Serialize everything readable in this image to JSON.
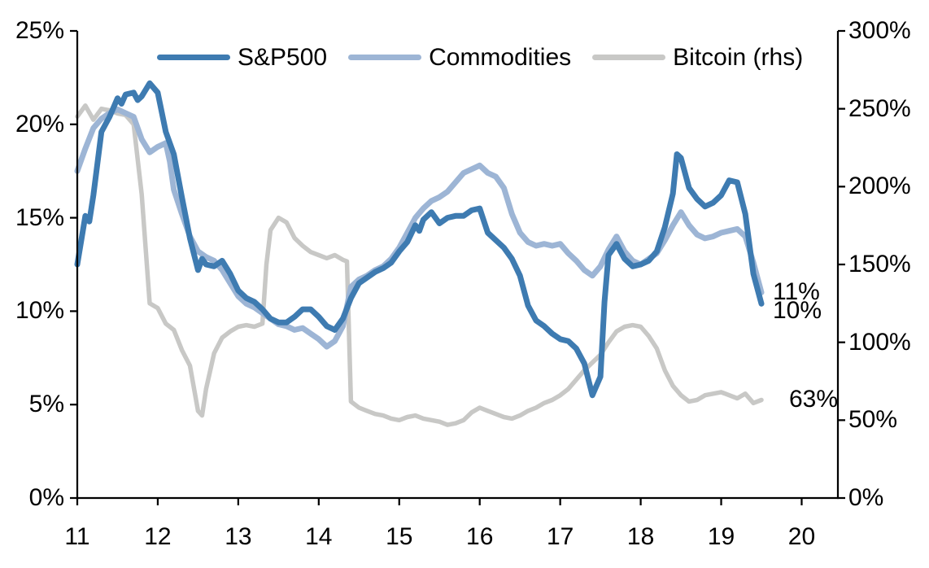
{
  "chart_data": {
    "type": "line",
    "legend_position": "top",
    "x_axis": {
      "min": 11,
      "max": 20.45,
      "tick_values": [
        11,
        12,
        13,
        14,
        15,
        16,
        17,
        18,
        19,
        20
      ],
      "tick_labels": [
        "11",
        "12",
        "13",
        "14",
        "15",
        "16",
        "17",
        "18",
        "19",
        "20"
      ]
    },
    "left_axis": {
      "min": 0,
      "max": 25,
      "tick_values": [
        0,
        5,
        10,
        15,
        20,
        25
      ],
      "tick_labels": [
        "0%",
        "5%",
        "10%",
        "15%",
        "20%",
        "25%"
      ]
    },
    "right_axis": {
      "min": 0,
      "max": 300,
      "tick_values": [
        0,
        50,
        100,
        150,
        200,
        250,
        300
      ],
      "tick_labels": [
        "0%",
        "50%",
        "100%",
        "150%",
        "200%",
        "250%",
        "300%"
      ]
    },
    "grid": false,
    "series": [
      {
        "name": "S&P500",
        "axis": "left",
        "color": "#3e7bb1",
        "points": [
          [
            11.0,
            12.5
          ],
          [
            11.1,
            15.1
          ],
          [
            11.15,
            14.8
          ],
          [
            11.2,
            16.2
          ],
          [
            11.3,
            19.6
          ],
          [
            11.4,
            20.4
          ],
          [
            11.5,
            21.4
          ],
          [
            11.55,
            21.1
          ],
          [
            11.6,
            21.6
          ],
          [
            11.7,
            21.7
          ],
          [
            11.75,
            21.3
          ],
          [
            11.8,
            21.5
          ],
          [
            11.9,
            22.2
          ],
          [
            12.0,
            21.7
          ],
          [
            12.1,
            19.6
          ],
          [
            12.2,
            18.4
          ],
          [
            12.3,
            16.1
          ],
          [
            12.4,
            13.9
          ],
          [
            12.5,
            12.2
          ],
          [
            12.55,
            12.8
          ],
          [
            12.6,
            12.5
          ],
          [
            12.7,
            12.4
          ],
          [
            12.8,
            12.7
          ],
          [
            12.9,
            12.0
          ],
          [
            13.0,
            11.1
          ],
          [
            13.1,
            10.7
          ],
          [
            13.2,
            10.5
          ],
          [
            13.3,
            10.1
          ],
          [
            13.4,
            9.6
          ],
          [
            13.5,
            9.4
          ],
          [
            13.6,
            9.4
          ],
          [
            13.7,
            9.7
          ],
          [
            13.8,
            10.1
          ],
          [
            13.9,
            10.1
          ],
          [
            14.0,
            9.7
          ],
          [
            14.1,
            9.2
          ],
          [
            14.2,
            9.0
          ],
          [
            14.3,
            9.6
          ],
          [
            14.4,
            10.7
          ],
          [
            14.5,
            11.5
          ],
          [
            14.6,
            11.8
          ],
          [
            14.7,
            12.1
          ],
          [
            14.8,
            12.3
          ],
          [
            14.9,
            12.6
          ],
          [
            15.0,
            13.2
          ],
          [
            15.1,
            13.7
          ],
          [
            15.2,
            14.6
          ],
          [
            15.25,
            14.3
          ],
          [
            15.3,
            14.9
          ],
          [
            15.4,
            15.3
          ],
          [
            15.5,
            14.7
          ],
          [
            15.6,
            15.0
          ],
          [
            15.7,
            15.1
          ],
          [
            15.8,
            15.1
          ],
          [
            15.9,
            15.4
          ],
          [
            16.0,
            15.5
          ],
          [
            16.1,
            14.2
          ],
          [
            16.2,
            13.8
          ],
          [
            16.3,
            13.4
          ],
          [
            16.4,
            12.8
          ],
          [
            16.5,
            11.9
          ],
          [
            16.6,
            10.3
          ],
          [
            16.7,
            9.5
          ],
          [
            16.8,
            9.2
          ],
          [
            16.9,
            8.8
          ],
          [
            17.0,
            8.5
          ],
          [
            17.1,
            8.4
          ],
          [
            17.2,
            8.0
          ],
          [
            17.3,
            7.2
          ],
          [
            17.4,
            5.5
          ],
          [
            17.5,
            6.5
          ],
          [
            17.55,
            10.5
          ],
          [
            17.6,
            13.0
          ],
          [
            17.7,
            13.6
          ],
          [
            17.8,
            12.8
          ],
          [
            17.9,
            12.4
          ],
          [
            18.0,
            12.5
          ],
          [
            18.1,
            12.7
          ],
          [
            18.2,
            13.2
          ],
          [
            18.3,
            14.5
          ],
          [
            18.4,
            16.3
          ],
          [
            18.45,
            18.4
          ],
          [
            18.5,
            18.2
          ],
          [
            18.6,
            16.6
          ],
          [
            18.7,
            16.0
          ],
          [
            18.8,
            15.6
          ],
          [
            18.9,
            15.8
          ],
          [
            19.0,
            16.2
          ],
          [
            19.1,
            17.0
          ],
          [
            19.2,
            16.9
          ],
          [
            19.3,
            15.2
          ],
          [
            19.4,
            12.0
          ],
          [
            19.5,
            10.4
          ]
        ]
      },
      {
        "name": "Commodities",
        "axis": "left",
        "color": "#9db5d5",
        "points": [
          [
            11.0,
            17.5
          ],
          [
            11.1,
            18.7
          ],
          [
            11.2,
            19.8
          ],
          [
            11.3,
            20.3
          ],
          [
            11.4,
            20.6
          ],
          [
            11.5,
            20.8
          ],
          [
            11.6,
            20.6
          ],
          [
            11.7,
            20.4
          ],
          [
            11.8,
            19.2
          ],
          [
            11.9,
            18.5
          ],
          [
            12.0,
            18.8
          ],
          [
            12.1,
            19.0
          ],
          [
            12.15,
            18.0
          ],
          [
            12.2,
            16.5
          ],
          [
            12.3,
            15.2
          ],
          [
            12.4,
            14.0
          ],
          [
            12.5,
            13.2
          ],
          [
            12.6,
            12.9
          ],
          [
            12.7,
            12.7
          ],
          [
            12.8,
            12.2
          ],
          [
            12.9,
            11.5
          ],
          [
            13.0,
            10.8
          ],
          [
            13.1,
            10.4
          ],
          [
            13.2,
            10.2
          ],
          [
            13.3,
            9.9
          ],
          [
            13.4,
            9.6
          ],
          [
            13.5,
            9.3
          ],
          [
            13.6,
            9.2
          ],
          [
            13.7,
            9.0
          ],
          [
            13.8,
            9.1
          ],
          [
            13.9,
            8.8
          ],
          [
            14.0,
            8.5
          ],
          [
            14.1,
            8.1
          ],
          [
            14.2,
            8.4
          ],
          [
            14.3,
            9.2
          ],
          [
            14.4,
            11.3
          ],
          [
            14.5,
            11.7
          ],
          [
            14.6,
            11.9
          ],
          [
            14.7,
            12.2
          ],
          [
            14.8,
            12.4
          ],
          [
            14.9,
            12.8
          ],
          [
            15.0,
            13.4
          ],
          [
            15.1,
            14.2
          ],
          [
            15.2,
            15.0
          ],
          [
            15.3,
            15.5
          ],
          [
            15.4,
            15.9
          ],
          [
            15.5,
            16.1
          ],
          [
            15.6,
            16.4
          ],
          [
            15.7,
            16.9
          ],
          [
            15.8,
            17.4
          ],
          [
            15.9,
            17.6
          ],
          [
            16.0,
            17.8
          ],
          [
            16.1,
            17.4
          ],
          [
            16.2,
            17.2
          ],
          [
            16.3,
            16.6
          ],
          [
            16.4,
            15.2
          ],
          [
            16.5,
            14.2
          ],
          [
            16.6,
            13.7
          ],
          [
            16.7,
            13.5
          ],
          [
            16.8,
            13.6
          ],
          [
            16.9,
            13.5
          ],
          [
            17.0,
            13.6
          ],
          [
            17.1,
            13.1
          ],
          [
            17.2,
            12.7
          ],
          [
            17.3,
            12.2
          ],
          [
            17.4,
            11.9
          ],
          [
            17.5,
            12.4
          ],
          [
            17.6,
            13.3
          ],
          [
            17.7,
            14.0
          ],
          [
            17.8,
            13.2
          ],
          [
            17.9,
            12.7
          ],
          [
            18.0,
            12.5
          ],
          [
            18.1,
            12.8
          ],
          [
            18.2,
            13.1
          ],
          [
            18.3,
            13.8
          ],
          [
            18.4,
            14.6
          ],
          [
            18.5,
            15.3
          ],
          [
            18.6,
            14.6
          ],
          [
            18.7,
            14.1
          ],
          [
            18.8,
            13.9
          ],
          [
            18.9,
            14.0
          ],
          [
            19.0,
            14.2
          ],
          [
            19.1,
            14.3
          ],
          [
            19.2,
            14.4
          ],
          [
            19.3,
            14.0
          ],
          [
            19.4,
            12.6
          ],
          [
            19.5,
            11.0
          ]
        ]
      },
      {
        "name": "Bitcoin (rhs)",
        "axis": "right",
        "color": "#c8c8c6",
        "points": [
          [
            11.0,
            245
          ],
          [
            11.1,
            252
          ],
          [
            11.2,
            243
          ],
          [
            11.3,
            250
          ],
          [
            11.4,
            249
          ],
          [
            11.5,
            247
          ],
          [
            11.6,
            246
          ],
          [
            11.7,
            240
          ],
          [
            11.8,
            195
          ],
          [
            11.9,
            125
          ],
          [
            12.0,
            122
          ],
          [
            12.1,
            112
          ],
          [
            12.2,
            108
          ],
          [
            12.3,
            95
          ],
          [
            12.4,
            85
          ],
          [
            12.5,
            56
          ],
          [
            12.55,
            53
          ],
          [
            12.6,
            70
          ],
          [
            12.7,
            93
          ],
          [
            12.8,
            103
          ],
          [
            12.9,
            107
          ],
          [
            13.0,
            110
          ],
          [
            13.1,
            111
          ],
          [
            13.2,
            110
          ],
          [
            13.3,
            112
          ],
          [
            13.35,
            150
          ],
          [
            13.4,
            172
          ],
          [
            13.5,
            180
          ],
          [
            13.6,
            177
          ],
          [
            13.7,
            167
          ],
          [
            13.8,
            162
          ],
          [
            13.9,
            158
          ],
          [
            14.0,
            156
          ],
          [
            14.1,
            154
          ],
          [
            14.2,
            156
          ],
          [
            14.3,
            153
          ],
          [
            14.35,
            152
          ],
          [
            14.4,
            62
          ],
          [
            14.5,
            58
          ],
          [
            14.6,
            56
          ],
          [
            14.7,
            54
          ],
          [
            14.8,
            53
          ],
          [
            14.9,
            51
          ],
          [
            15.0,
            50
          ],
          [
            15.1,
            52
          ],
          [
            15.2,
            53
          ],
          [
            15.3,
            51
          ],
          [
            15.4,
            50
          ],
          [
            15.5,
            49
          ],
          [
            15.6,
            47
          ],
          [
            15.7,
            48
          ],
          [
            15.8,
            50
          ],
          [
            15.9,
            55
          ],
          [
            16.0,
            58
          ],
          [
            16.1,
            56
          ],
          [
            16.2,
            54
          ],
          [
            16.3,
            52
          ],
          [
            16.4,
            51
          ],
          [
            16.5,
            53
          ],
          [
            16.6,
            56
          ],
          [
            16.7,
            58
          ],
          [
            16.8,
            61
          ],
          [
            16.9,
            63
          ],
          [
            17.0,
            66
          ],
          [
            17.1,
            70
          ],
          [
            17.2,
            76
          ],
          [
            17.3,
            82
          ],
          [
            17.4,
            87
          ],
          [
            17.5,
            92
          ],
          [
            17.6,
            100
          ],
          [
            17.7,
            107
          ],
          [
            17.8,
            110
          ],
          [
            17.9,
            111
          ],
          [
            18.0,
            110
          ],
          [
            18.1,
            104
          ],
          [
            18.2,
            96
          ],
          [
            18.3,
            82
          ],
          [
            18.4,
            72
          ],
          [
            18.5,
            66
          ],
          [
            18.6,
            62
          ],
          [
            18.7,
            63
          ],
          [
            18.8,
            66
          ],
          [
            18.9,
            67
          ],
          [
            19.0,
            68
          ],
          [
            19.1,
            66
          ],
          [
            19.2,
            64
          ],
          [
            19.3,
            67
          ],
          [
            19.4,
            61
          ],
          [
            19.5,
            63
          ]
        ]
      }
    ],
    "end_labels": [
      {
        "text": "11%",
        "axis": "left",
        "value": 11
      },
      {
        "text": "10%",
        "axis": "left",
        "value": 10
      },
      {
        "text": "63%",
        "axis": "right",
        "value": 63
      }
    ]
  }
}
